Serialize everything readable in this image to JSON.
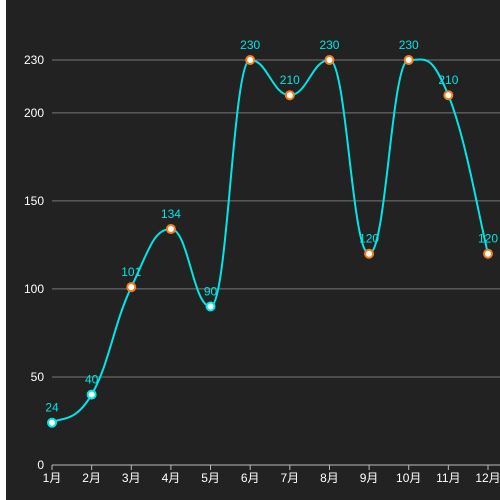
{
  "colors": {
    "background": "#222222",
    "axis_text": "#ffffff",
    "axis_line": "#bbbbbb",
    "grid_line": "#777777",
    "line": "#00e5e5",
    "label": "#00e5e5",
    "marker_fill": "#ffffff",
    "marker_stroke_low": "#00e5e5",
    "marker_stroke_high": "#f47d20"
  },
  "chart_data": {
    "type": "line",
    "smooth": true,
    "grid": "horizontal",
    "legend": "none",
    "categories": [
      "1月",
      "2月",
      "3月",
      "4月",
      "5月",
      "6月",
      "7月",
      "8月",
      "9月",
      "10月",
      "11月",
      "12月"
    ],
    "series": [
      {
        "values": [
          24,
          40,
          101,
          134,
          90,
          230,
          210,
          230,
          120,
          230,
          210,
          120
        ]
      }
    ],
    "y_ticks": [
      0,
      50,
      100,
      150,
      200,
      230
    ],
    "ylim": [
      0,
      230
    ],
    "highlight_threshold": 100,
    "title": "",
    "xlabel": "",
    "ylabel": ""
  }
}
